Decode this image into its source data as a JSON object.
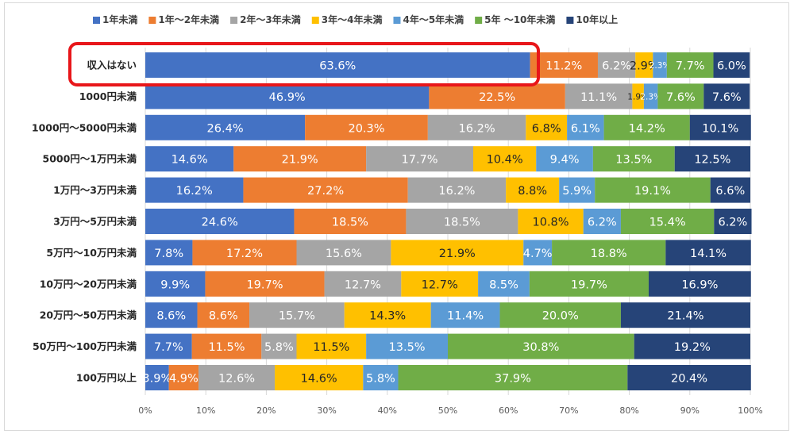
{
  "chart_data": {
    "type": "bar",
    "orientation": "horizontal",
    "stacked": "100%",
    "legend_position": "top",
    "grid": true,
    "xlim": [
      0,
      100
    ],
    "x_ticks": [
      "0%",
      "10%",
      "20%",
      "30%",
      "40%",
      "50%",
      "60%",
      "70%",
      "80%",
      "90%",
      "100%"
    ],
    "categories": [
      "収入はない",
      "1000円未満",
      "1000円～5000円未満",
      "5000円～1万円未満",
      "1万円～3万円未満",
      "3万円～5万円未満",
      "5万円～10万円未満",
      "10万円～20万円未満",
      "20万円～50万円未満",
      "50万円～100万円未満",
      "100万円以上"
    ],
    "series": [
      {
        "name": "1年未満",
        "color": "#4472C4",
        "label_color": "#ffffff",
        "values": [
          63.6,
          46.9,
          26.4,
          14.6,
          16.2,
          24.6,
          7.8,
          9.9,
          8.6,
          7.7,
          3.9
        ],
        "labels": [
          "63.6%",
          "46.9%",
          "26.4%",
          "14.6%",
          "16.2%",
          "24.6%",
          "7.8%",
          "9.9%",
          "8.6%",
          "7.7%",
          "3.9%"
        ]
      },
      {
        "name": "1年～2年未満",
        "color": "#ED7D31",
        "label_color": "#ffffff",
        "values": [
          11.2,
          22.5,
          20.3,
          21.9,
          27.2,
          18.5,
          17.2,
          19.7,
          8.6,
          11.5,
          4.9
        ],
        "labels": [
          "11.2%",
          "22.5%",
          "20.3%",
          "21.9%",
          "27.2%",
          "18.5%",
          "17.2%",
          "19.7%",
          "8.6%",
          "11.5%",
          "4.9%"
        ]
      },
      {
        "name": "2年～3年未満",
        "color": "#A5A5A5",
        "label_color": "#ffffff",
        "values": [
          6.2,
          11.1,
          16.2,
          17.7,
          16.2,
          18.5,
          15.6,
          12.7,
          15.7,
          5.8,
          12.6
        ],
        "labels": [
          "6.2%",
          "11.1%",
          "16.2%",
          "17.7%",
          "16.2%",
          "18.5%",
          "15.6%",
          "12.7%",
          "15.7%",
          "5.8%",
          "12.6%"
        ]
      },
      {
        "name": "3年～4年未満",
        "color": "#FFC000",
        "label_color": "#262626",
        "values": [
          2.9,
          1.9,
          6.8,
          10.4,
          8.8,
          10.8,
          21.9,
          12.7,
          14.3,
          11.5,
          14.6
        ],
        "labels": [
          "2.9%",
          "1.9%",
          "6.8%",
          "10.4%",
          "8.8%",
          "10.8%",
          "21.9%",
          "12.7%",
          "14.3%",
          "11.5%",
          "14.6%"
        ]
      },
      {
        "name": "4年～5年未満",
        "color": "#5B9BD5",
        "label_color": "#ffffff",
        "values": [
          2.3,
          2.3,
          6.1,
          9.4,
          5.9,
          6.2,
          4.7,
          8.5,
          11.4,
          13.5,
          5.8
        ],
        "labels": [
          "2.3%",
          "2.3%",
          "6.1%",
          "9.4%",
          "5.9%",
          "6.2%",
          "4.7%",
          "8.5%",
          "11.4%",
          "13.5%",
          "5.8%"
        ]
      },
      {
        "name": "5年 ～10年未満",
        "color": "#70AD47",
        "label_color": "#ffffff",
        "values": [
          7.7,
          7.6,
          14.2,
          13.5,
          19.1,
          15.4,
          18.8,
          19.7,
          20.0,
          30.8,
          37.9
        ],
        "labels": [
          "7.7%",
          "7.6%",
          "14.2%",
          "13.5%",
          "19.1%",
          "15.4%",
          "18.8%",
          "19.7%",
          "20.0%",
          "30.8%",
          "37.9%"
        ]
      },
      {
        "name": "10年以上",
        "color": "#264478",
        "label_color": "#ffffff",
        "values": [
          6.0,
          7.6,
          10.1,
          12.5,
          6.6,
          6.2,
          14.1,
          16.9,
          21.4,
          19.2,
          20.4
        ],
        "labels": [
          "6.0%",
          "7.6%",
          "10.1%",
          "12.5%",
          "6.6%",
          "6.2%",
          "14.1%",
          "16.9%",
          "21.4%",
          "19.2%",
          "20.4%"
        ]
      }
    ],
    "highlight": {
      "category": "収入はない",
      "color": "#E8161A"
    }
  }
}
